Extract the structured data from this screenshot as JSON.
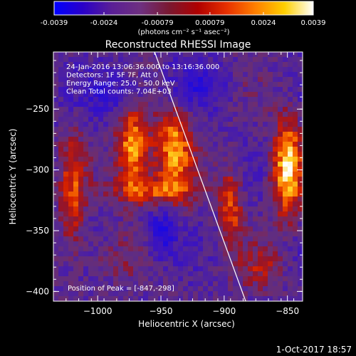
{
  "colorbar": {
    "min": -0.0039,
    "max": 0.0039,
    "tick_labels": [
      "-0.0039",
      "-0.0024",
      "-0.00079",
      "0.00079",
      "0.0024",
      "0.0039"
    ],
    "unit_label": "(photons cm⁻² s⁻¹ asec⁻²)",
    "colors": [
      "#0000ff",
      "#2a00c8",
      "#5a1e96",
      "#6e3080",
      "#7a1830",
      "#b00000",
      "#e83000",
      "#ff8000",
      "#ffd000",
      "#ffffff"
    ]
  },
  "chart_data": {
    "type": "heatmap",
    "title": "Reconstructed RHESSI Image",
    "xlabel": "Heliocentric X (arcsec)",
    "ylabel": "Heliocentric Y (arcsec)",
    "xlim": [
      -1035,
      -838
    ],
    "ylim": [
      -408,
      -203
    ],
    "x_ticks": [
      -1000,
      -950,
      -900,
      -850
    ],
    "x_tick_labels": [
      "−1000",
      "−950",
      "−900",
      "−850"
    ],
    "y_ticks": [
      -250,
      -300,
      -350,
      -400
    ],
    "y_tick_labels": [
      "−250",
      "−300",
      "−350",
      "−400"
    ],
    "info_lines": [
      "24-Jan-2016 13:06:36.000 to 13:16:36.000",
      "Detectors: 1F 5F 7F, Att 0",
      "Energy Range: 25.0 - 50.0 keV",
      "Clean     Total counts: 7.04E+03"
    ],
    "peak_label": "Position of Peak = [-847,-298]",
    "peak_position": [
      -847,
      -298
    ],
    "limb_line": [
      [
        -955,
        -203
      ],
      [
        -883,
        -408
      ]
    ],
    "blobs": [
      {
        "x": -972,
        "y": -282,
        "sx": 9,
        "sy": 24,
        "amp": 0.95
      },
      {
        "x": -940,
        "y": -282,
        "sx": 10,
        "sy": 24,
        "amp": 0.85
      },
      {
        "x": -955,
        "y": -317,
        "sx": 22,
        "sy": 8,
        "amp": 0.6
      },
      {
        "x": -1020,
        "y": -320,
        "sx": 7,
        "sy": 35,
        "amp": 0.55
      },
      {
        "x": -895,
        "y": -330,
        "sx": 6,
        "sy": 22,
        "amp": 0.65
      },
      {
        "x": -850,
        "y": -298,
        "sx": 8,
        "sy": 28,
        "amp": 1.0
      },
      {
        "x": -990,
        "y": -375,
        "sx": 16,
        "sy": 12,
        "amp": 0.15
      },
      {
        "x": -950,
        "y": -352,
        "sx": 8,
        "sy": 14,
        "amp": -0.5
      },
      {
        "x": -985,
        "y": -240,
        "sx": 20,
        "sy": 14,
        "amp": -0.35
      },
      {
        "x": -920,
        "y": -230,
        "sx": 18,
        "sy": 14,
        "amp": -0.3
      },
      {
        "x": -870,
        "y": -380,
        "sx": 12,
        "sy": 12,
        "amp": 0.35
      }
    ]
  },
  "footer_timestamp": "1-Oct-2017 18:57"
}
